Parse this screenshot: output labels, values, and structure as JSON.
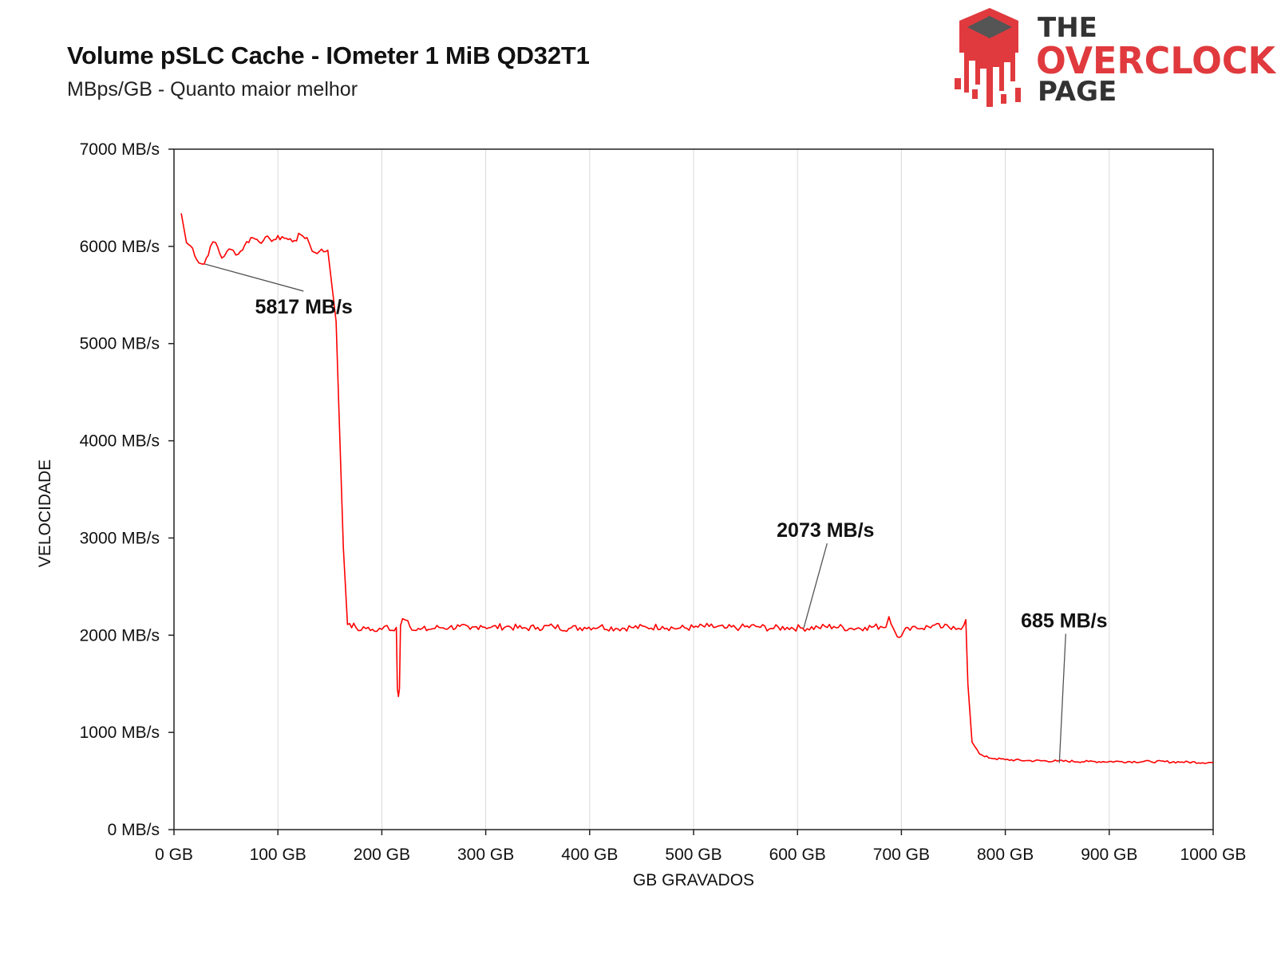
{
  "header": {
    "title": "Volume pSLC Cache - IOmeter 1 MiB QD32T1",
    "subtitle": "MBps/GB - Quanto maior melhor"
  },
  "logo": {
    "line1": "THE",
    "line2": "OVERCLOCK",
    "line3": "PAGE",
    "accent_color": "#e03a3e",
    "dark_color": "#333333"
  },
  "chart_data": {
    "type": "line",
    "xlabel": "GB GRAVADOS",
    "ylabel": "VELOCIDADE",
    "xlim": [
      0,
      1000
    ],
    "ylim": [
      0,
      7000
    ],
    "x_ticks": [
      0,
      100,
      200,
      300,
      400,
      500,
      600,
      700,
      800,
      900,
      1000
    ],
    "x_tick_labels": [
      "0 GB",
      "100 GB",
      "200 GB",
      "300 GB",
      "400 GB",
      "500 GB",
      "600 GB",
      "700 GB",
      "800 GB",
      "900 GB",
      "1000 GB"
    ],
    "y_ticks": [
      0,
      1000,
      2000,
      3000,
      4000,
      5000,
      6000,
      7000
    ],
    "y_tick_labels": [
      "0 MB/s",
      "1000 MB/s",
      "2000 MB/s",
      "3000 MB/s",
      "4000 MB/s",
      "5000 MB/s",
      "6000 MB/s",
      "7000 MB/s"
    ],
    "grid": "vertical",
    "line_color": "#ff0000",
    "series": [
      {
        "x": [
          7,
          12,
          18,
          24,
          29,
          35,
          40,
          46,
          51,
          57,
          62,
          68,
          74,
          80,
          86,
          92,
          98,
          104,
          110,
          116,
          122,
          128,
          133,
          140,
          148,
          156,
          163,
          167,
          169,
          175,
          180,
          187,
          193,
          200,
          205,
          210,
          214,
          215,
          216,
          217,
          218,
          220,
          225,
          231,
          237,
          245,
          255,
          265,
          275,
          285,
          295,
          305,
          320,
          335,
          350,
          365,
          380,
          395,
          410,
          425,
          440,
          455,
          470,
          485,
          500,
          515,
          530,
          545,
          560,
          575,
          590,
          605,
          620,
          635,
          650,
          665,
          680,
          685,
          688,
          694,
          700,
          706,
          713,
          720,
          730,
          740,
          750,
          755,
          760,
          762,
          764,
          766,
          768,
          771,
          775,
          780,
          790,
          800,
          820,
          850,
          880,
          910,
          940,
          970,
          1000
        ],
        "y": [
          6340,
          6040,
          5980,
          5830,
          5817,
          6000,
          6040,
          5880,
          5950,
          5960,
          5920,
          6010,
          6090,
          6070,
          6060,
          6080,
          6070,
          6100,
          6070,
          6060,
          6120,
          6090,
          5950,
          5950,
          5960,
          5230,
          2900,
          2110,
          2120,
          2080,
          2050,
          2080,
          2040,
          2060,
          2100,
          2050,
          2080,
          1450,
          1370,
          1450,
          2100,
          2170,
          2150,
          2050,
          2060,
          2060,
          2080,
          2080,
          2090,
          2060,
          2100,
          2080,
          2090,
          2070,
          2080,
          2090,
          2070,
          2080,
          2090,
          2070,
          2080,
          2080,
          2090,
          2070,
          2080,
          2090,
          2073,
          2080,
          2090,
          2070,
          2080,
          2073,
          2080,
          2090,
          2070,
          2080,
          2090,
          2080,
          2190,
          2030,
          1990,
          2080,
          2090,
          2070,
          2100,
          2080,
          2090,
          2070,
          2100,
          2160,
          1500,
          1200,
          900,
          850,
          780,
          750,
          730,
          720,
          710,
          705,
          700,
          700,
          700,
          695,
          690
        ]
      }
    ],
    "annotations": [
      {
        "text": "5817 MB/s",
        "x": 30,
        "y": 5817,
        "label_x": 78,
        "label_y": 5310
      },
      {
        "text": "2073 MB/s",
        "x": 606,
        "y": 2073,
        "label_x": 580,
        "label_y": 3010
      },
      {
        "text": "685 MB/s",
        "x": 852,
        "y": 685,
        "label_x": 815,
        "label_y": 2080
      }
    ]
  }
}
